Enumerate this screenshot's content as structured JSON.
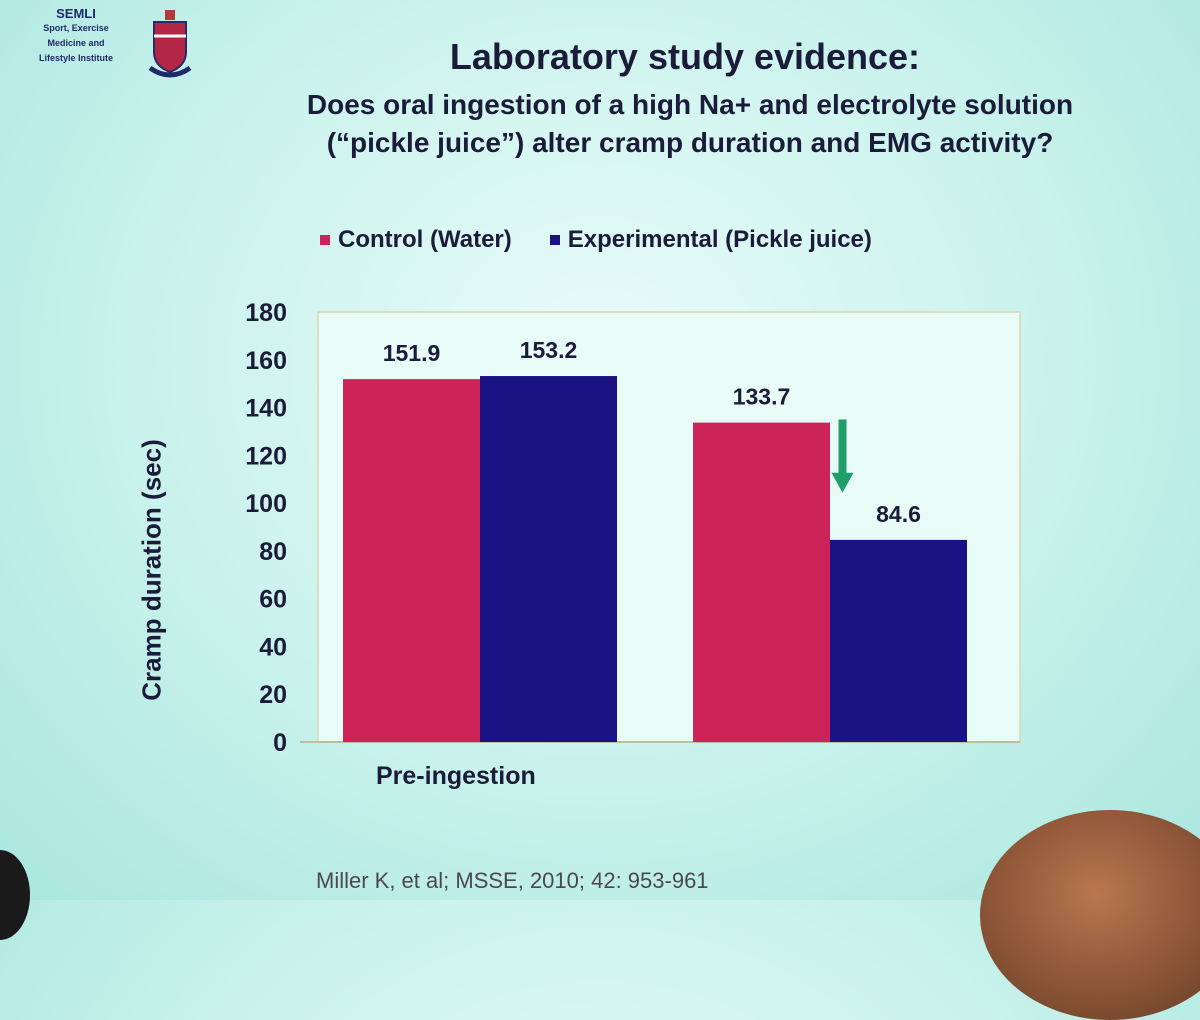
{
  "logo": {
    "name": "SEMLI",
    "subtitle_lines": [
      "Sport, Exercise",
      "Medicine and",
      "Lifestyle Institute"
    ]
  },
  "slide": {
    "title": "Laboratory study evidence:",
    "subtitle_line1": "Does oral ingestion of a high Na+ and electrolyte solution",
    "subtitle_line2": "(“pickle juice”) alter cramp duration and EMG activity?",
    "citation": "Miller K, et al; MSSE, 2010; 42: 953-961"
  },
  "chart_data": {
    "type": "bar",
    "categories": [
      "Pre-ingestion",
      ""
    ],
    "series": [
      {
        "name": "Control (Water)",
        "values": [
          151.9,
          133.7
        ],
        "color": "#cc2458"
      },
      {
        "name": "Experimental (Pickle juice)",
        "values": [
          153.2,
          84.6
        ],
        "color": "#1a1282"
      }
    ],
    "data_labels": [
      [
        "151.9",
        "133.7"
      ],
      [
        "153.2",
        "84.6"
      ]
    ],
    "ylabel": "Cramp duration (sec)",
    "xlabel": "Pre-ingestion",
    "ylim": [
      0,
      180
    ],
    "yticks": [
      0,
      20,
      40,
      60,
      80,
      100,
      120,
      140,
      160,
      180
    ],
    "legend_position": "top",
    "grid": false,
    "annotation": {
      "icon": "down-arrow-icon",
      "color": "#1f9e6a",
      "target": "84.6"
    }
  }
}
